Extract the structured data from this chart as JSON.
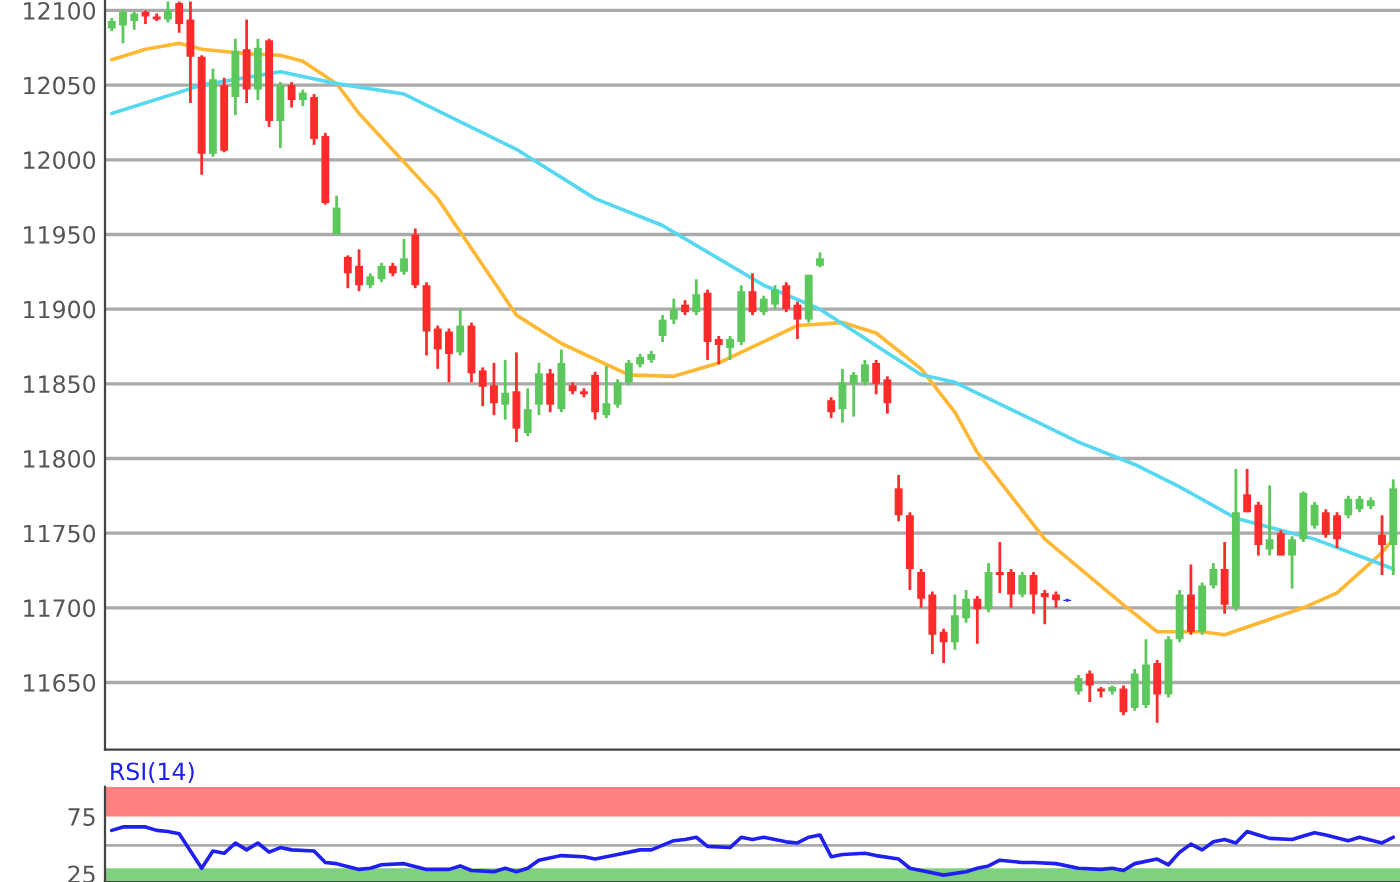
{
  "chart_data": [
    {
      "type": "candlestick",
      "categories": [
        null,
        null,
        null,
        null,
        null,
        null,
        null,
        null,
        null,
        null,
        null,
        null,
        null,
        null,
        null,
        null,
        null,
        null,
        null,
        null,
        null,
        null,
        null,
        null,
        null,
        null,
        null,
        null,
        null,
        null,
        null,
        null,
        null,
        null,
        null,
        null,
        null,
        null,
        null,
        null,
        null,
        null,
        null,
        null,
        null,
        null,
        null,
        null,
        null,
        null,
        null,
        null,
        null,
        null,
        null,
        null,
        null,
        null,
        null,
        null,
        null,
        null,
        null,
        null,
        null,
        null,
        null,
        null,
        null,
        null,
        null,
        null,
        null,
        null,
        null,
        null,
        null,
        null,
        null,
        null,
        null,
        null,
        null,
        null,
        null,
        null,
        null,
        null,
        null,
        null,
        null,
        null,
        null,
        null,
        null,
        null,
        null,
        null,
        null,
        null,
        null,
        null,
        null,
        null,
        null,
        null,
        null,
        null,
        null,
        null,
        null,
        null,
        null,
        null,
        null
      ],
      "ohlc": [
        [
          12088,
          12095,
          12086,
          12093
        ],
        [
          12090,
          12101,
          12078,
          12099
        ],
        [
          12093,
          12099,
          12087,
          12098
        ],
        [
          12099,
          12100,
          12091,
          12096
        ],
        [
          12096,
          12098,
          12093,
          12094
        ],
        [
          12094,
          12106,
          12092,
          12100
        ],
        [
          12105,
          12106,
          12085,
          12091
        ],
        [
          12094,
          12106,
          12038,
          12069
        ],
        [
          12069,
          12070,
          11990,
          12004
        ],
        [
          12004,
          12061,
          12002,
          12054
        ],
        [
          12050,
          12055,
          12005,
          12006
        ],
        [
          12042,
          12081,
          12030,
          12073
        ],
        [
          12074,
          12094,
          12038,
          12047
        ],
        [
          12047,
          12081,
          12040,
          12075
        ],
        [
          12080,
          12081,
          12022,
          12026
        ],
        [
          12026,
          12052,
          12008,
          12050
        ],
        [
          12050,
          12052,
          12035,
          12040
        ],
        [
          12040,
          12047,
          12036,
          12045
        ],
        [
          12042,
          12044,
          12010,
          12014
        ],
        [
          12016,
          12018,
          11970,
          11971
        ],
        [
          11950,
          11976,
          11950,
          11968
        ],
        [
          11935,
          11936,
          11914,
          11924
        ],
        [
          11929,
          11940,
          11912,
          11916
        ],
        [
          11916,
          11924,
          11914,
          11922
        ],
        [
          11920,
          11931,
          11918,
          11929
        ],
        [
          11929,
          11931,
          11922,
          11924
        ],
        [
          11925,
          11947,
          11923,
          11934
        ],
        [
          11950,
          11954,
          11914,
          11916
        ],
        [
          11916,
          11918,
          11869,
          11885
        ],
        [
          11887,
          11889,
          11860,
          11873
        ],
        [
          11885,
          11887,
          11851,
          11870
        ],
        [
          11871,
          11900,
          11869,
          11889
        ],
        [
          11889,
          11891,
          11851,
          11857
        ],
        [
          11859,
          11861,
          11835,
          11848
        ],
        [
          11849,
          11864,
          11829,
          11837
        ],
        [
          11836,
          11866,
          11826,
          11844
        ],
        [
          11845,
          11871,
          11811,
          11820
        ],
        [
          11817,
          11847,
          11815,
          11833
        ],
        [
          11836,
          11864,
          11829,
          11857
        ],
        [
          11857,
          11860,
          11831,
          11836
        ],
        [
          11833,
          11873,
          11831,
          11864
        ],
        [
          11849,
          11851,
          11843,
          11845
        ],
        [
          11845,
          11847,
          11841,
          11843
        ],
        [
          11856,
          11858,
          11826,
          11831
        ],
        [
          11829,
          11862,
          11827,
          11837
        ],
        [
          11836,
          11853,
          11834,
          11851
        ],
        [
          11851,
          11866,
          11849,
          11864
        ],
        [
          11863,
          11870,
          11861,
          11868
        ],
        [
          11866,
          11872,
          11864,
          11870
        ],
        [
          11882,
          11896,
          11878,
          11893
        ],
        [
          11893,
          11907,
          11890,
          11900
        ],
        [
          11903,
          11906,
          11896,
          11898
        ],
        [
          11898,
          11920,
          11896,
          11910
        ],
        [
          11911,
          11913,
          11866,
          11878
        ],
        [
          11880,
          11882,
          11863,
          11876
        ],
        [
          11874,
          11882,
          11866,
          11880
        ],
        [
          11878,
          11916,
          11876,
          11912
        ],
        [
          11912,
          11924,
          11896,
          11898
        ],
        [
          11898,
          11909,
          11896,
          11907
        ],
        [
          11903,
          11916,
          11900,
          11913
        ],
        [
          11916,
          11918,
          11898,
          11900
        ],
        [
          11903,
          11905,
          11880,
          11893
        ],
        [
          11893,
          11923,
          11891,
          11923
        ],
        [
          11929,
          11938,
          11928,
          11934
        ],
        [
          11839,
          11841,
          11827,
          11831
        ],
        [
          11833,
          11860,
          11824,
          11851
        ],
        [
          11850,
          11858,
          11828,
          11856
        ],
        [
          11851,
          11866,
          11849,
          11863
        ],
        [
          11864,
          11866,
          11843,
          11850
        ],
        [
          11853,
          11855,
          11830,
          11837
        ],
        [
          11780,
          11789,
          11758,
          11762
        ],
        [
          11762,
          11764,
          11712,
          11726
        ],
        [
          11724,
          11726,
          11700,
          11706
        ],
        [
          11709,
          11711,
          11669,
          11682
        ],
        [
          11684,
          11686,
          11663,
          11677
        ],
        [
          11677,
          11709,
          11672,
          11695
        ],
        [
          11693,
          11712,
          11690,
          11706
        ],
        [
          11706,
          11708,
          11676,
          11699
        ],
        [
          11699,
          11730,
          11697,
          11724
        ],
        [
          11724,
          11744,
          11710,
          11722
        ],
        [
          11724,
          11726,
          11700,
          11709
        ],
        [
          11709,
          11724,
          11707,
          11722
        ],
        [
          11722,
          11724,
          11696,
          11709
        ],
        [
          11710,
          11712,
          11689,
          11707
        ],
        [
          11709,
          11711,
          11700,
          11705
        ],
        [
          11705,
          11706,
          11704,
          11705
        ],
        [
          11644,
          11655,
          11642,
          11653
        ],
        [
          11656,
          11658,
          11637,
          11648
        ],
        [
          11646,
          11647,
          11640,
          11644
        ],
        [
          11644,
          11648,
          11642,
          11647
        ],
        [
          11646,
          11648,
          11628,
          11630
        ],
        [
          11633,
          11659,
          11631,
          11656
        ],
        [
          11635,
          11679,
          11633,
          11662
        ],
        [
          11663,
          11665,
          11623,
          11642
        ],
        [
          11642,
          11681,
          11640,
          11679
        ],
        [
          11679,
          11712,
          11677,
          11709
        ],
        [
          11709,
          11729,
          11682,
          11684
        ],
        [
          11684,
          11717,
          11682,
          11715
        ],
        [
          11715,
          11730,
          11713,
          11726
        ],
        [
          11726,
          11744,
          11696,
          11702
        ],
        [
          11700,
          11793,
          11698,
          11764
        ],
        [
          11776,
          11793,
          11764,
          11764
        ],
        [
          11769,
          11771,
          11735,
          11742
        ],
        [
          11739,
          11782,
          11735,
          11746
        ],
        [
          11750,
          11752,
          11735,
          11735
        ],
        [
          11735,
          11748,
          11713,
          11746
        ],
        [
          11746,
          11778,
          11744,
          11777
        ],
        [
          11755,
          11771,
          11753,
          11769
        ],
        [
          11764,
          11766,
          11747,
          11749
        ],
        [
          11762,
          11764,
          11740,
          11746
        ],
        [
          11762,
          11775,
          11760,
          11773
        ],
        [
          11766,
          11775,
          11764,
          11773
        ],
        [
          11768,
          11774,
          11766,
          11772
        ],
        [
          11749,
          11762,
          11722,
          11742
        ],
        [
          11742,
          11786,
          11722,
          11780
        ]
      ],
      "colors": [
        "#5cc85c",
        "#5cc85c",
        "#5cc85c",
        "#ff2a2a",
        "#ff2a2a",
        "#5cc85c",
        "#ff2a2a",
        "#ff2a2a",
        "#ff2a2a",
        "#5cc85c",
        "#ff2a2a",
        "#5cc85c",
        "#ff2a2a",
        "#5cc85c",
        "#ff2a2a",
        "#5cc85c",
        "#ff2a2a",
        "#5cc85c",
        "#ff2a2a",
        "#ff2a2a",
        "#5cc85c",
        "#ff2a2a",
        "#ff2a2a",
        "#5cc85c",
        "#5cc85c",
        "#ff2a2a",
        "#5cc85c",
        "#ff2a2a",
        "#ff2a2a",
        "#ff2a2a",
        "#ff2a2a",
        "#5cc85c",
        "#ff2a2a",
        "#ff2a2a",
        "#ff2a2a",
        "#5cc85c",
        "#ff2a2a",
        "#5cc85c",
        "#5cc85c",
        "#ff2a2a",
        "#5cc85c",
        "#ff2a2a",
        "#ff2a2a",
        "#ff2a2a",
        "#5cc85c",
        "#5cc85c",
        "#5cc85c",
        "#5cc85c",
        "#5cc85c",
        "#5cc85c",
        "#5cc85c",
        "#ff2a2a",
        "#5cc85c",
        "#ff2a2a",
        "#ff2a2a",
        "#5cc85c",
        "#5cc85c",
        "#ff2a2a",
        "#5cc85c",
        "#5cc85c",
        "#ff2a2a",
        "#ff2a2a",
        "#5cc85c",
        "#5cc85c",
        "#ff2a2a",
        "#5cc85c",
        "#5cc85c",
        "#5cc85c",
        "#ff2a2a",
        "#ff2a2a",
        "#ff2a2a",
        "#ff2a2a",
        "#ff2a2a",
        "#ff2a2a",
        "#ff2a2a",
        "#5cc85c",
        "#5cc85c",
        "#ff2a2a",
        "#5cc85c",
        "#ff2a2a",
        "#ff2a2a",
        "#5cc85c",
        "#ff2a2a",
        "#ff2a2a",
        "#ff2a2a",
        "#3030e0",
        "#5cc85c",
        "#ff2a2a",
        "#ff2a2a",
        "#5cc85c",
        "#ff2a2a",
        "#5cc85c",
        "#5cc85c",
        "#ff2a2a",
        "#5cc85c",
        "#5cc85c",
        "#ff2a2a",
        "#5cc85c",
        "#5cc85c",
        "#ff2a2a",
        "#5cc85c",
        "#ff2a2a",
        "#ff2a2a",
        "#5cc85c",
        "#ff2a2a",
        "#5cc85c",
        "#5cc85c",
        "#5cc85c",
        "#ff2a2a",
        "#ff2a2a",
        "#5cc85c",
        "#5cc85c",
        "#5cc85c",
        "#ff2a2a",
        "#5cc85c"
      ],
      "series": [
        {
          "type": "line",
          "color": "#ffb833",
          "values": [
            12067,
            null,
            null,
            12074,
            null,
            null,
            12078,
            null,
            12074,
            null,
            null,
            null,
            12071,
            null,
            null,
            12070,
            null,
            12066,
            null,
            null,
            12051,
            null,
            12031,
            null,
            null,
            null,
            null,
            null,
            null,
            11974,
            null,
            null,
            null,
            null,
            null,
            null,
            11896,
            null,
            null,
            null,
            11877,
            null,
            null,
            null,
            null,
            null,
            11856,
            null,
            null,
            null,
            11855,
            null,
            null,
            null,
            11864,
            null,
            null,
            null,
            null,
            null,
            null,
            11889,
            null,
            null,
            null,
            11891,
            null,
            null,
            11884,
            null,
            null,
            null,
            11860,
            null,
            null,
            11831,
            null,
            11804,
            null,
            null,
            null,
            null,
            null,
            11746,
            null,
            null,
            null,
            null,
            null,
            null,
            11702,
            null,
            null,
            11684,
            null,
            null,
            null,
            11684,
            null,
            11682,
            null,
            null,
            null,
            null,
            null,
            null,
            11700,
            null,
            null,
            11710,
            null,
            null,
            null,
            11737,
            11746
          ]
        },
        {
          "type": "line",
          "color": "#55d8f0",
          "values": [
            12031,
            null,
            null,
            null,
            null,
            null,
            null,
            null,
            12050,
            null,
            null,
            null,
            null,
            null,
            null,
            12059,
            null,
            null,
            null,
            null,
            12051,
            null,
            null,
            null,
            null,
            null,
            12044,
            null,
            null,
            null,
            null,
            null,
            null,
            null,
            null,
            null,
            12007,
            null,
            null,
            null,
            null,
            null,
            null,
            11974,
            null,
            null,
            null,
            null,
            null,
            11956,
            null,
            null,
            null,
            null,
            null,
            null,
            null,
            null,
            11916,
            null,
            null,
            null,
            null,
            11900,
            null,
            null,
            null,
            null,
            null,
            null,
            null,
            null,
            11856,
            null,
            null,
            11851,
            null,
            null,
            null,
            null,
            null,
            null,
            null,
            null,
            null,
            null,
            11811,
            null,
            null,
            null,
            null,
            11796,
            null,
            null,
            null,
            11781,
            null,
            null,
            null,
            null,
            11760,
            null,
            null,
            null,
            null,
            null,
            null,
            11746,
            null,
            null,
            null,
            null,
            null,
            11729,
            11726
          ]
        }
      ],
      "ylim": [
        11605,
        12107
      ],
      "yticks": [
        11650,
        11700,
        11750,
        11800,
        11850,
        11900,
        11950,
        12000,
        12050,
        12100
      ],
      "grid": "y",
      "tick_labels": "y"
    },
    {
      "type": "line",
      "title": "RSI(14)",
      "categories": [
        null,
        null,
        null,
        null,
        null,
        null,
        null,
        null,
        null,
        null,
        null,
        null,
        null,
        null,
        null,
        null,
        null,
        null,
        null,
        null,
        null,
        null,
        null,
        null,
        null,
        null,
        null,
        null,
        null,
        null,
        null,
        null,
        null,
        null,
        null,
        null,
        null,
        null,
        null,
        null,
        null,
        null,
        null,
        null,
        null,
        null,
        null,
        null,
        null,
        null,
        null,
        null,
        null,
        null,
        null,
        null,
        null,
        null,
        null,
        null,
        null,
        null,
        null,
        null,
        null,
        null,
        null,
        null,
        null,
        null,
        null,
        null,
        null,
        null,
        null,
        null,
        null,
        null,
        null,
        null,
        null,
        null,
        null,
        null,
        null,
        null,
        null,
        null,
        null,
        null,
        null,
        null,
        null,
        null,
        null,
        null,
        null,
        null,
        null,
        null,
        null,
        null,
        null,
        null,
        null,
        null,
        null,
        null,
        null,
        null,
        null,
        null,
        null,
        null,
        null
      ],
      "series": [
        {
          "color": "#2020ee",
          "values": [
            63,
            66,
            null,
            66,
            63,
            62,
            60,
            null,
            30,
            45,
            43,
            52,
            46,
            52,
            44,
            48,
            46,
            null,
            45,
            35,
            34,
            null,
            29,
            30,
            33,
            null,
            34,
            null,
            29,
            null,
            29,
            32,
            28,
            null,
            27,
            30,
            27,
            30,
            37,
            null,
            41,
            null,
            40,
            38,
            null,
            42,
            null,
            46,
            46,
            null,
            54,
            55,
            57,
            49,
            null,
            48,
            57,
            55,
            57,
            null,
            53,
            52,
            57,
            59,
            40,
            42,
            null,
            43,
            41,
            null,
            38,
            30,
            28,
            null,
            24,
            null,
            27,
            30,
            32,
            37,
            null,
            35,
            35,
            null,
            34,
            null,
            30,
            null,
            29,
            30,
            28,
            34,
            null,
            38,
            33,
            44,
            51,
            46,
            53,
            55,
            52,
            62,
            59,
            56,
            null,
            55,
            58,
            61,
            59,
            null,
            54,
            57,
            null,
            52,
            57
          ]
        }
      ],
      "ylim": [
        18,
        101
      ],
      "yticks": [
        25,
        75
      ],
      "bands": [
        {
          "axis": "y",
          "from": 75,
          "to": 101,
          "color": "#ff8080"
        },
        {
          "axis": "y",
          "from": 18,
          "to": 30,
          "color": "#80d080"
        }
      ],
      "ref_lines": [
        {
          "axis": "y",
          "value": 50,
          "color": "#aaaaaa"
        }
      ],
      "tick_labels": "y"
    }
  ]
}
